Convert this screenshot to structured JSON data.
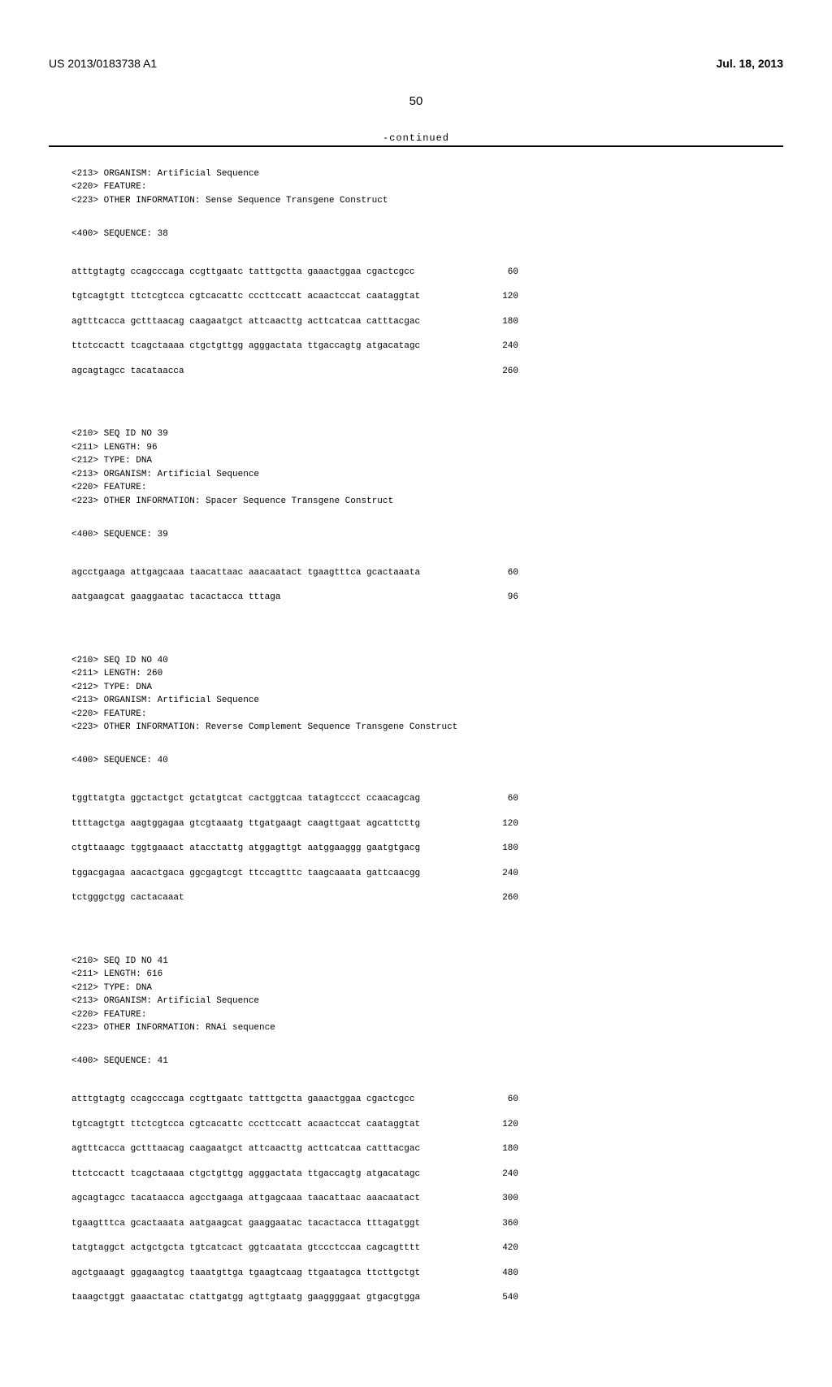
{
  "header": {
    "pub_number": "US 2013/0183738 A1",
    "pub_date": "Jul. 18, 2013",
    "page_number": "50",
    "continued_label": "-continued"
  },
  "seq38": {
    "organism": "<213> ORGANISM: Artificial Sequence",
    "feature": "<220> FEATURE:",
    "other_info": "<223> OTHER INFORMATION: Sense Sequence Transgene Construct",
    "seq_header": "<400> SEQUENCE: 38",
    "lines": [
      {
        "s": "atttgtagtg ccagcccaga ccgttgaatc tatttgctta gaaactggaa cgactcgcc",
        "n": "60"
      },
      {
        "s": "tgtcagtgtt ttctcgtcca cgtcacattc cccttccatt acaactccat caataggtat",
        "n": "120"
      },
      {
        "s": "agtttcacca gctttaacag caagaatgct attcaacttg acttcatcaa catttacgac",
        "n": "180"
      },
      {
        "s": "ttctccactt tcagctaaaa ctgctgttgg agggactata ttgaccagtg atgacatagc",
        "n": "240"
      },
      {
        "s": "agcagtagcc tacataacca",
        "n": "260"
      }
    ]
  },
  "seq39": {
    "id": "<210> SEQ ID NO 39",
    "length": "<211> LENGTH: 96",
    "type": "<212> TYPE: DNA",
    "organism": "<213> ORGANISM: Artificial Sequence",
    "feature": "<220> FEATURE:",
    "other_info": "<223> OTHER INFORMATION: Spacer Sequence Transgene Construct",
    "seq_header": "<400> SEQUENCE: 39",
    "lines": [
      {
        "s": "agcctgaaga attgagcaaa taacattaac aaacaatact tgaagtttca gcactaaata",
        "n": "60"
      },
      {
        "s": "aatgaagcat gaaggaatac tacactacca tttaga",
        "n": "96"
      }
    ]
  },
  "seq40": {
    "id": "<210> SEQ ID NO 40",
    "length": "<211> LENGTH: 260",
    "type": "<212> TYPE: DNA",
    "organism": "<213> ORGANISM: Artificial Sequence",
    "feature": "<220> FEATURE:",
    "other_info": "<223> OTHER INFORMATION: Reverse Complement Sequence Transgene Construct",
    "seq_header": "<400> SEQUENCE: 40",
    "lines": [
      {
        "s": "tggttatgta ggctactgct gctatgtcat cactggtcaa tatagtccct ccaacagcag",
        "n": "60"
      },
      {
        "s": "ttttagctga aagtggagaa gtcgtaaatg ttgatgaagt caagttgaat agcattcttg",
        "n": "120"
      },
      {
        "s": "ctgttaaagc tggtgaaact atacctattg atggagttgt aatggaaggg gaatgtgacg",
        "n": "180"
      },
      {
        "s": "tggacgagaa aacactgaca ggcgagtcgt ttccagtttc taagcaaata gattcaacgg",
        "n": "240"
      },
      {
        "s": "tctgggctgg cactacaaat",
        "n": "260"
      }
    ]
  },
  "seq41": {
    "id": "<210> SEQ ID NO 41",
    "length": "<211> LENGTH: 616",
    "type": "<212> TYPE: DNA",
    "organism": "<213> ORGANISM: Artificial Sequence",
    "feature": "<220> FEATURE:",
    "other_info": "<223> OTHER INFORMATION: RNAi sequence",
    "seq_header": "<400> SEQUENCE: 41",
    "lines": [
      {
        "s": "atttgtagtg ccagcccaga ccgttgaatc tatttgctta gaaactggaa cgactcgcc",
        "n": "60"
      },
      {
        "s": "tgtcagtgtt ttctcgtcca cgtcacattc cccttccatt acaactccat caataggtat",
        "n": "120"
      },
      {
        "s": "agtttcacca gctttaacag caagaatgct attcaacttg acttcatcaa catttacgac",
        "n": "180"
      },
      {
        "s": "ttctccactt tcagctaaaa ctgctgttgg agggactata ttgaccagtg atgacatagc",
        "n": "240"
      },
      {
        "s": "agcagtagcc tacataacca agcctgaaga attgagcaaa taacattaac aaacaatact",
        "n": "300"
      },
      {
        "s": "tgaagtttca gcactaaata aatgaagcat gaaggaatac tacactacca tttagatggt",
        "n": "360"
      },
      {
        "s": "tatgtaggct actgctgcta tgtcatcact ggtcaatata gtccctccaa cagcagtttt",
        "n": "420"
      },
      {
        "s": "agctgaaagt ggagaagtcg taaatgttga tgaagtcaag ttgaatagca ttcttgctgt",
        "n": "480"
      },
      {
        "s": "taaagctggt gaaactatac ctattgatgg agttgtaatg gaaggggaat gtgacgtgga",
        "n": "540"
      }
    ]
  }
}
